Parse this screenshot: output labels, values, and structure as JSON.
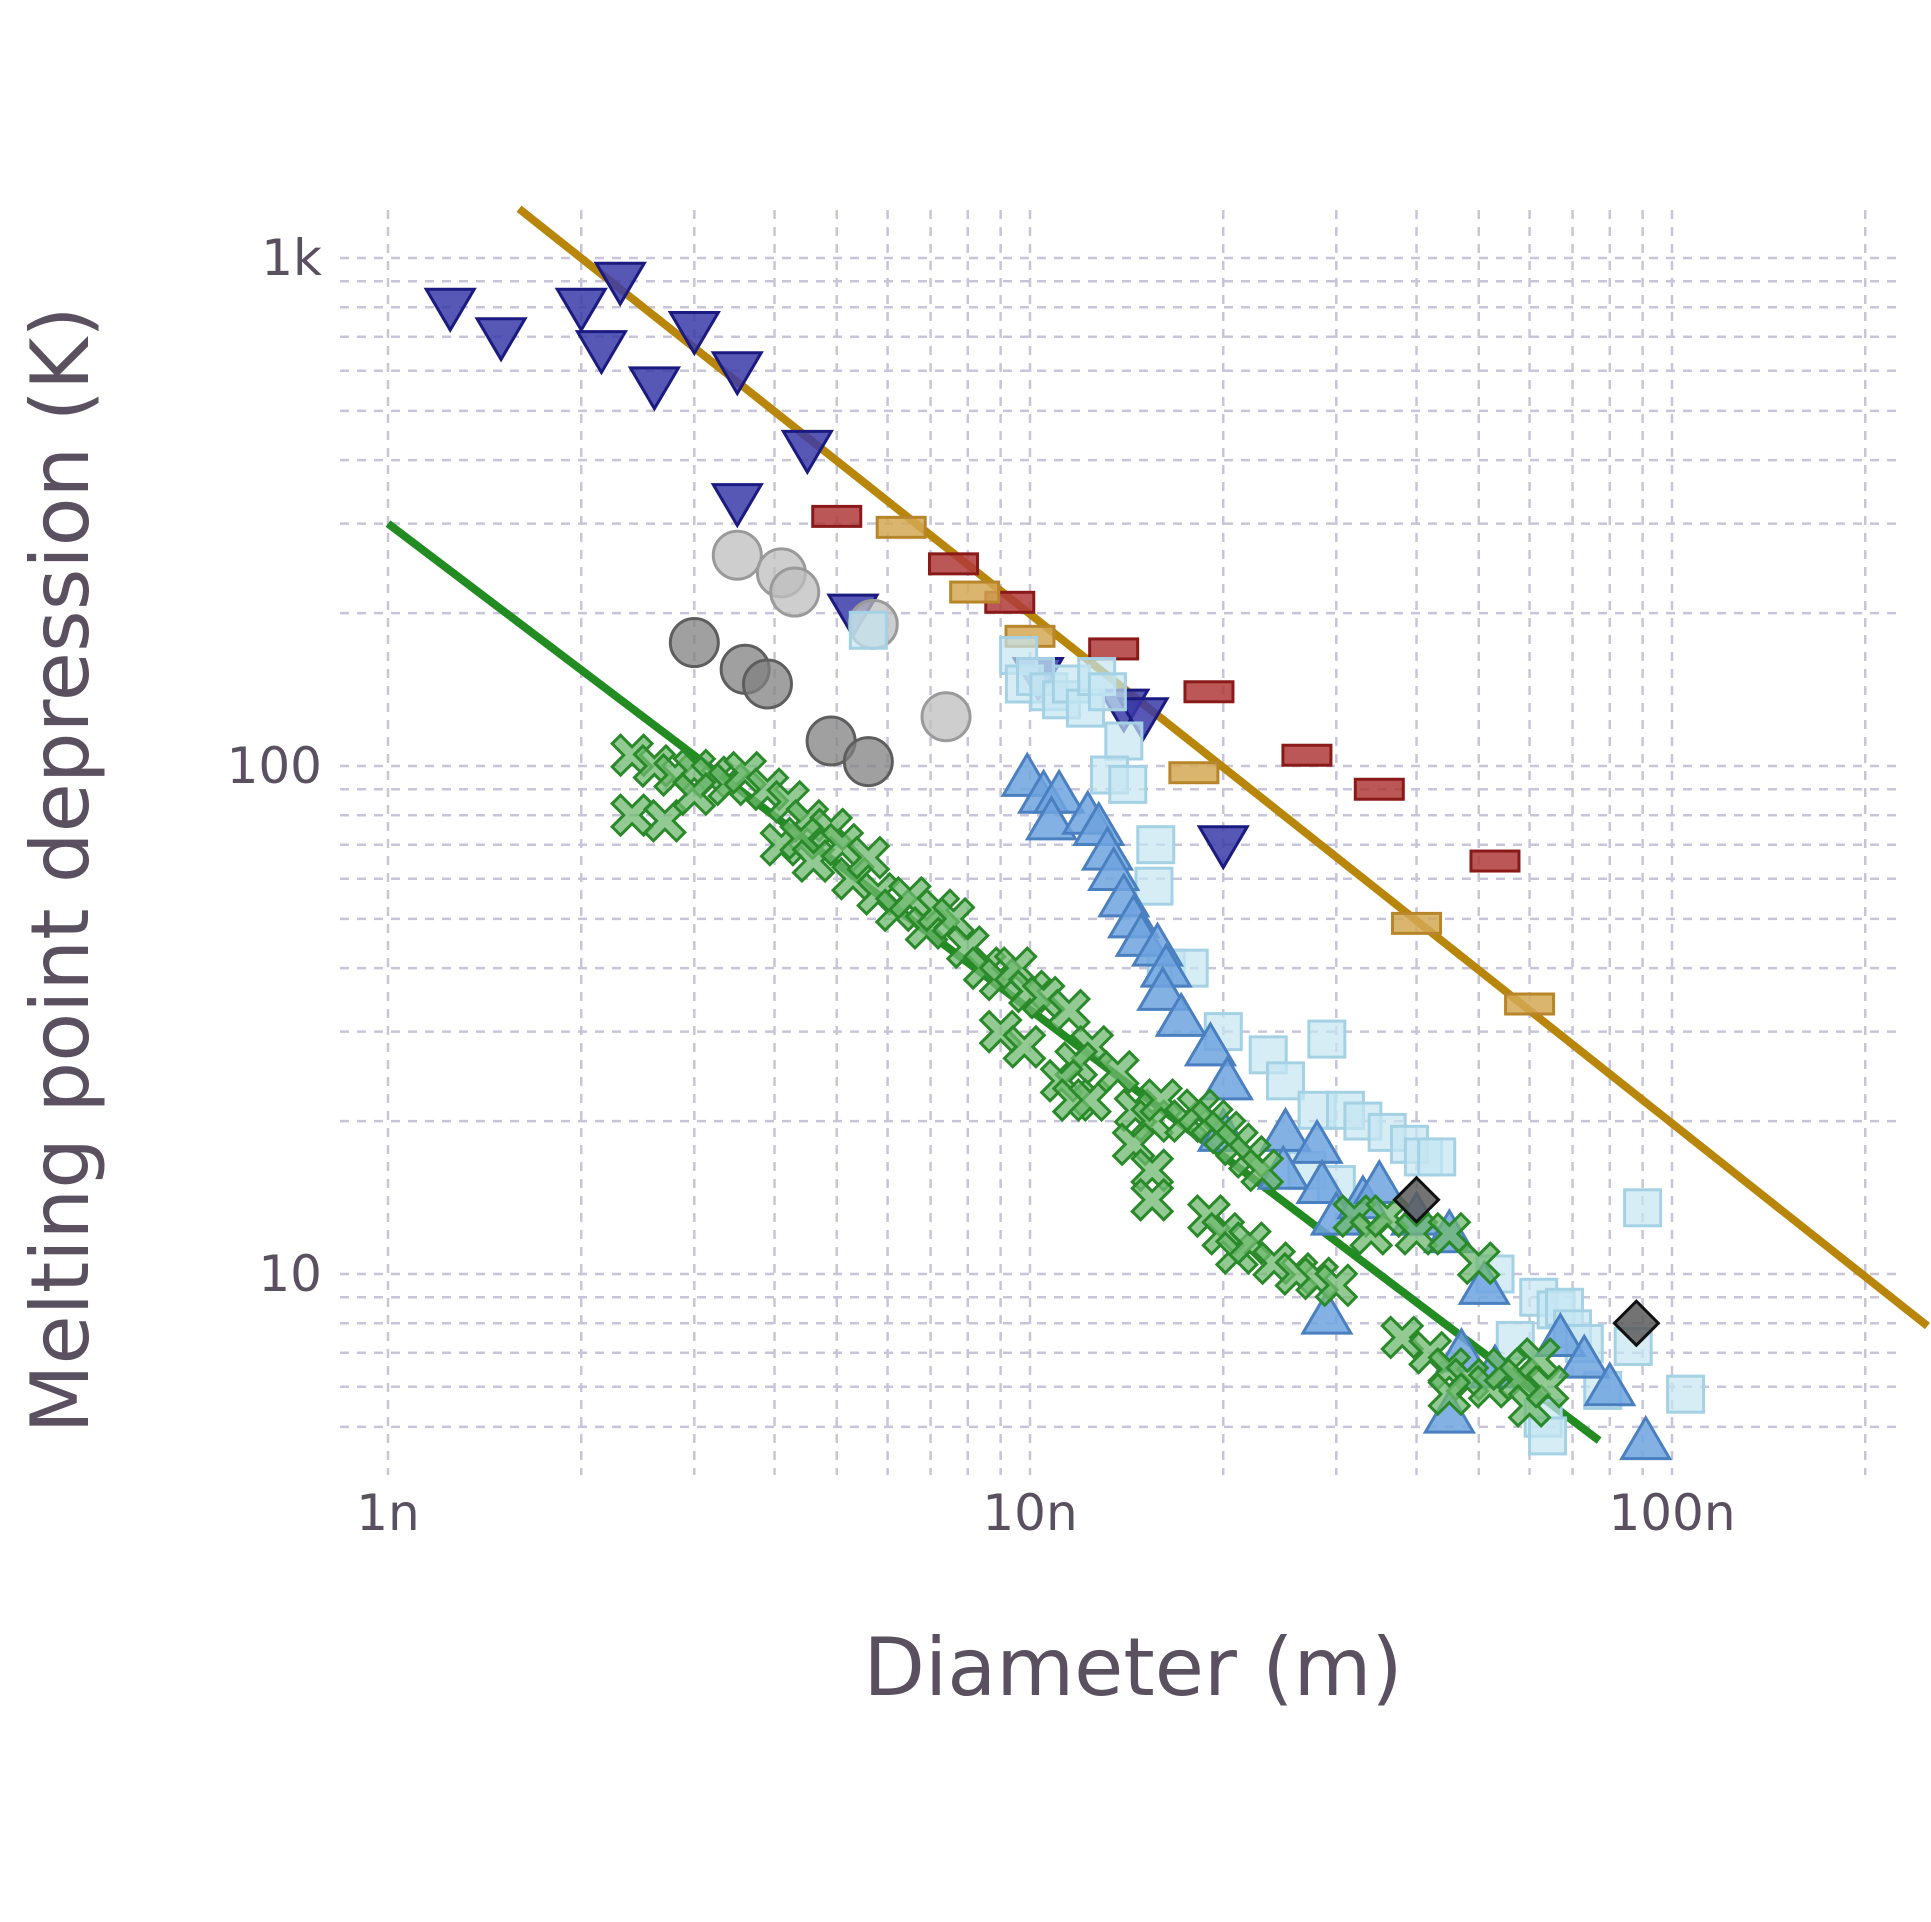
{
  "chart_data": {
    "type": "scatter",
    "title": "",
    "xlabel": "Diameter (m)",
    "ylabel": "Melting point depression (K)",
    "xscale": "log",
    "yscale": "log",
    "xlim": [
      1e-09,
      2.5e-07
    ],
    "ylim": [
      5,
      1350
    ],
    "grid": true,
    "legend": "none",
    "x_ticks": [
      {
        "value": 1e-09,
        "label": "1n"
      },
      {
        "value": 1e-08,
        "label": "10n"
      },
      {
        "value": 1e-07,
        "label": "100n"
      }
    ],
    "y_ticks": [
      {
        "value": 10,
        "label": "10"
      },
      {
        "value": 100,
        "label": "100"
      },
      {
        "value": 1000,
        "label": "1k"
      }
    ],
    "series": [
      {
        "marker": "down-triangle",
        "color": "#3a3aa8",
        "edge": "#1a1a80",
        "points": [
          [
            1.25e-09,
            800
          ],
          [
            1.5e-09,
            700
          ],
          [
            2e-09,
            800
          ],
          [
            2.15e-09,
            660
          ],
          [
            2.3e-09,
            900
          ],
          [
            2.6e-09,
            560
          ],
          [
            3e-09,
            720
          ],
          [
            3.5e-09,
            600
          ],
          [
            4.5e-09,
            420
          ],
          [
            3.5e-09,
            330
          ],
          [
            5.3e-09,
            200
          ],
          [
            1.03e-08,
            150
          ],
          [
            1.4e-08,
            130
          ],
          [
            1.5e-08,
            125
          ],
          [
            2e-08,
            70
          ]
        ]
      },
      {
        "marker": "dash",
        "color": "#b03a3a",
        "edge": "#8a1a1a",
        "points": [
          [
            5e-09,
            310
          ],
          [
            7.6e-09,
            250
          ],
          [
            9.3e-09,
            210
          ],
          [
            1.35e-08,
            170
          ],
          [
            1.9e-08,
            140
          ],
          [
            2.7e-08,
            105
          ],
          [
            3.5e-08,
            90
          ],
          [
            5.3e-08,
            65
          ]
        ]
      },
      {
        "marker": "dash",
        "color": "#d4a853",
        "edge": "#b8862a",
        "points": [
          [
            6.3e-09,
            295
          ],
          [
            8.2e-09,
            220
          ],
          [
            1e-08,
            180
          ],
          [
            1.8e-08,
            97
          ],
          [
            4e-08,
            49
          ],
          [
            6e-08,
            34
          ]
        ]
      },
      {
        "marker": "circle",
        "color": "#bdbdbd",
        "edge": "#9a9a9a",
        "points": [
          [
            3.5e-09,
            260
          ],
          [
            4.1e-09,
            240
          ],
          [
            4.3e-09,
            220
          ],
          [
            5.7e-09,
            190
          ],
          [
            7.4e-09,
            125
          ]
        ]
      },
      {
        "marker": "circle",
        "color": "#808080",
        "edge": "#5e5e5e",
        "points": [
          [
            3e-09,
            175
          ],
          [
            3.6e-09,
            155
          ],
          [
            3.9e-09,
            145
          ],
          [
            4.9e-09,
            112
          ],
          [
            5.6e-09,
            102
          ]
        ]
      },
      {
        "marker": "square",
        "color": "#c5e6f2",
        "edge": "#a4d2e4",
        "points": [
          [
            5.6e-09,
            185
          ],
          [
            9.6e-09,
            165
          ],
          [
            9.8e-09,
            145
          ],
          [
            1.02e-08,
            150
          ],
          [
            1.07e-08,
            140
          ],
          [
            1.12e-08,
            135
          ],
          [
            1.16e-08,
            145
          ],
          [
            1.22e-08,
            130
          ],
          [
            1.27e-08,
            150
          ],
          [
            1.32e-08,
            140
          ],
          [
            1.4e-08,
            112
          ],
          [
            1.33e-08,
            96
          ],
          [
            1.42e-08,
            92
          ],
          [
            1.57e-08,
            70
          ],
          [
            1.56e-08,
            58
          ],
          [
            1.63e-08,
            40
          ],
          [
            1.77e-08,
            40
          ],
          [
            2e-08,
            30
          ],
          [
            2.35e-08,
            27
          ],
          [
            2.5e-08,
            24
          ],
          [
            2.8e-08,
            21
          ],
          [
            2.9e-08,
            29
          ],
          [
            3.1e-08,
            21
          ],
          [
            3.3e-08,
            20
          ],
          [
            3.6e-08,
            19
          ],
          [
            3.9e-08,
            18
          ],
          [
            4.1e-08,
            17
          ],
          [
            4.3e-08,
            17
          ],
          [
            2.7e-08,
            16
          ],
          [
            3e-08,
            15
          ],
          [
            5.3e-08,
            10
          ],
          [
            6.2e-08,
            9
          ],
          [
            6.6e-08,
            8.5
          ],
          [
            6.8e-08,
            8.6
          ],
          [
            7e-08,
            7.8
          ],
          [
            5.7e-08,
            7.4
          ],
          [
            7.3e-08,
            7.3
          ],
          [
            8.7e-08,
            7.2
          ],
          [
            9e-08,
            13.5
          ],
          [
            7.8e-08,
            5.9
          ],
          [
            1.05e-07,
            5.8
          ],
          [
            6.3e-08,
            5.2
          ],
          [
            6.4e-08,
            4.8
          ]
        ]
      },
      {
        "marker": "up-triangle",
        "color": "#6fa3df",
        "edge": "#4a80c0",
        "points": [
          [
            9.9e-09,
            95
          ],
          [
            1.05e-08,
            88
          ],
          [
            1.11e-08,
            88
          ],
          [
            1.08e-08,
            78
          ],
          [
            1.23e-08,
            80
          ],
          [
            1.28e-08,
            76
          ],
          [
            1.32e-08,
            68
          ],
          [
            1.35e-08,
            62
          ],
          [
            1.4e-08,
            55
          ],
          [
            1.45e-08,
            50
          ],
          [
            1.49e-08,
            46
          ],
          [
            1.58e-08,
            44
          ],
          [
            1.63e-08,
            40
          ],
          [
            1.61e-08,
            36
          ],
          [
            1.72e-08,
            32
          ],
          [
            1.91e-08,
            28
          ],
          [
            2.03e-08,
            24
          ],
          [
            2e-08,
            19
          ],
          [
            2.5e-08,
            19
          ],
          [
            2.48e-08,
            16
          ],
          [
            2.8e-08,
            18
          ],
          [
            2.85e-08,
            15
          ],
          [
            3e-08,
            13
          ],
          [
            3.3e-08,
            14
          ],
          [
            3.5e-08,
            15
          ],
          [
            4e-08,
            13
          ],
          [
            4.5e-08,
            12
          ],
          [
            5.1e-08,
            9.5
          ],
          [
            2.9e-08,
            8.3
          ],
          [
            4.7e-08,
            7
          ],
          [
            5.3e-08,
            6.5
          ],
          [
            6.7e-08,
            7.5
          ],
          [
            7.3e-08,
            6.8
          ],
          [
            8e-08,
            6
          ],
          [
            4.5e-08,
            5.3
          ],
          [
            9.1e-08,
            4.7
          ]
        ]
      },
      {
        "marker": "cross",
        "color": "#6fb86f",
        "edge": "#2a8a2a",
        "points": [
          [
            2.4e-09,
            105
          ],
          [
            2.6e-09,
            100
          ],
          [
            2.8e-09,
            96
          ],
          [
            3e-09,
            98
          ],
          [
            3.2e-09,
            95
          ],
          [
            3.4e-09,
            92
          ],
          [
            3.6e-09,
            97
          ],
          [
            3.9e-09,
            90
          ],
          [
            4.2e-09,
            85
          ],
          [
            4.5e-09,
            78
          ],
          [
            4.9e-09,
            75
          ],
          [
            2.4e-09,
            80
          ],
          [
            2.7e-09,
            78
          ],
          [
            3e-09,
            88
          ],
          [
            4.1e-09,
            70
          ],
          [
            4.4e-09,
            72
          ],
          [
            4.6e-09,
            65
          ],
          [
            5.1e-09,
            70
          ],
          [
            5.3e-09,
            60
          ],
          [
            5.6e-09,
            66
          ],
          [
            5.8e-09,
            56
          ],
          [
            6.2e-09,
            52
          ],
          [
            6.5e-09,
            55
          ],
          [
            6.9e-09,
            48
          ],
          [
            7.2e-09,
            52
          ],
          [
            7.6e-09,
            50
          ],
          [
            8e-09,
            44
          ],
          [
            8.5e-09,
            40
          ],
          [
            9e-09,
            38
          ],
          [
            9.5e-09,
            40
          ],
          [
            1e-08,
            36
          ],
          [
            1.05e-08,
            35
          ],
          [
            9e-09,
            30
          ],
          [
            9.8e-09,
            28
          ],
          [
            1.15e-08,
            33
          ],
          [
            1.25e-08,
            28
          ],
          [
            1.18e-08,
            26
          ],
          [
            1.12e-08,
            24
          ],
          [
            1.17e-08,
            22
          ],
          [
            1.24e-08,
            22
          ],
          [
            1.37e-08,
            25
          ],
          [
            1.46e-08,
            21
          ],
          [
            1.55e-08,
            20
          ],
          [
            1.45e-08,
            18
          ],
          [
            1.6e-08,
            22
          ],
          [
            1.75e-08,
            20
          ],
          [
            1.83e-08,
            21
          ],
          [
            1.92e-08,
            20
          ],
          [
            2.01e-08,
            19
          ],
          [
            1.55e-08,
            16
          ],
          [
            1.55e-08,
            14
          ],
          [
            2.1e-08,
            18
          ],
          [
            2.2e-08,
            17
          ],
          [
            2.3e-08,
            16
          ],
          [
            1.9e-08,
            13
          ],
          [
            2e-08,
            12
          ],
          [
            2.1e-08,
            11
          ],
          [
            2.2e-08,
            11.5
          ],
          [
            2.4e-08,
            10.5
          ],
          [
            2.6e-08,
            10
          ],
          [
            2.8e-08,
            9.8
          ],
          [
            3e-08,
            9.5
          ],
          [
            3.2e-08,
            13
          ],
          [
            3.4e-08,
            12
          ],
          [
            3.6e-08,
            13
          ],
          [
            4e-08,
            12
          ],
          [
            4.5e-08,
            12
          ],
          [
            5e-08,
            10.5
          ],
          [
            3.8e-08,
            7.5
          ],
          [
            4.2e-08,
            7
          ],
          [
            4.5e-08,
            6.5
          ],
          [
            4.8e-08,
            6.2
          ],
          [
            5.2e-08,
            6
          ],
          [
            5.5e-08,
            6.5
          ],
          [
            5.8e-08,
            6.2
          ],
          [
            6.2e-08,
            6.8
          ],
          [
            4.5e-08,
            5.8
          ],
          [
            6e-08,
            5.5
          ],
          [
            6.4e-08,
            6
          ]
        ]
      },
      {
        "marker": "diamond",
        "color": "#5a5a5a",
        "edge": "#111111",
        "points": [
          [
            4e-08,
            14
          ],
          [
            8.8e-08,
            8
          ]
        ]
      }
    ],
    "fit_lines": [
      {
        "color": "#b8860b",
        "x": [
          1.6e-09,
          2.5e-07
        ],
        "y": [
          1250,
          7.9
        ]
      },
      {
        "color": "#228b22",
        "x": [
          1e-09,
          7.7e-08
        ],
        "y": [
          300,
          4.7
        ]
      }
    ]
  }
}
